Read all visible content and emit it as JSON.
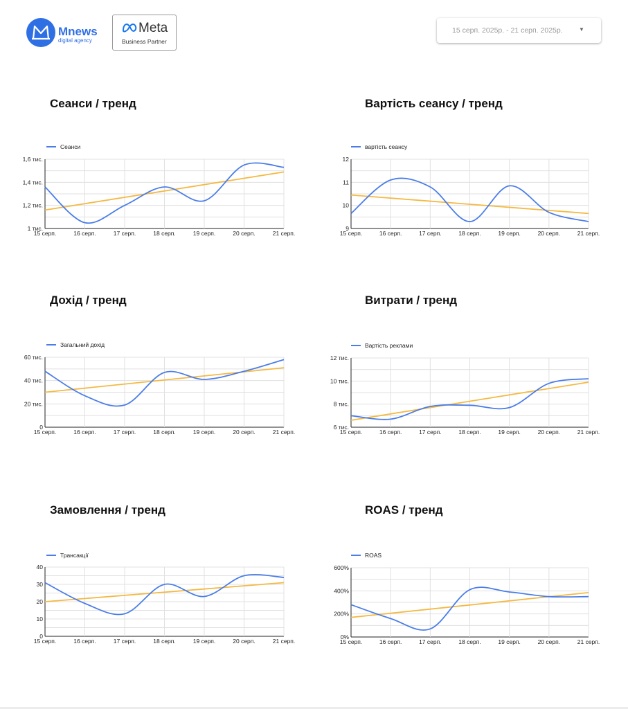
{
  "header": {
    "brand": "Mnews",
    "brand_sub": "digital agency",
    "meta_word": "Meta",
    "meta_partner": "Business Partner",
    "date_range": "15 серп. 2025р. - 21 серп. 2025р."
  },
  "colors": {
    "series": "#4a7de8",
    "trend": "#f4b942",
    "brand": "#2f6fe4"
  },
  "cards": [
    {
      "title": "Сеанси / тренд"
    },
    {
      "title": "Вартість сеансу / тренд"
    },
    {
      "title": "Дохід / тренд"
    },
    {
      "title": "Витрати / тренд"
    },
    {
      "title": "Замовлення / тренд"
    },
    {
      "title": "ROAS / тренд"
    }
  ],
  "chart_data": [
    {
      "type": "line",
      "x": [
        "15 серп.",
        "16 серп.",
        "17 серп.",
        "18 серп.",
        "19 серп.",
        "20 серп.",
        "21 серп."
      ],
      "yticks": [
        "1 тис.",
        "1,2 тис.",
        "1,4 тис.",
        "1,6 тис."
      ],
      "ylim": [
        1000,
        1600
      ],
      "legend": "top-left",
      "series": [
        {
          "name": "Сеанси",
          "values": [
            1360,
            1050,
            1200,
            1360,
            1240,
            1550,
            1530
          ]
        }
      ],
      "trend": [
        1160,
        1490
      ]
    },
    {
      "type": "line",
      "x": [
        "15 серп.",
        "16 серп.",
        "17 серп.",
        "18 серп.",
        "19 серп.",
        "20 серп.",
        "21 серп."
      ],
      "yticks": [
        "9",
        "10",
        "11",
        "12"
      ],
      "ylim": [
        9,
        12
      ],
      "legend": "top-left",
      "series": [
        {
          "name": "вартість сеансу",
          "values": [
            9.65,
            11.1,
            10.8,
            9.3,
            10.85,
            9.7,
            9.3
          ]
        }
      ],
      "trend": [
        10.45,
        9.65
      ]
    },
    {
      "type": "line",
      "x": [
        "15 серп.",
        "16 серп.",
        "17 серп.",
        "18 серп.",
        "19 серп.",
        "20 серп.",
        "21 серп."
      ],
      "yticks": [
        "0",
        "20 тис.",
        "40 тис.",
        "60 тис."
      ],
      "ylim": [
        0,
        60000
      ],
      "legend": "top-left",
      "series": [
        {
          "name": "Загальний дохід",
          "values": [
            48000,
            27000,
            19000,
            47000,
            41000,
            48000,
            58000
          ]
        }
      ],
      "trend": [
        30000,
        51000
      ]
    },
    {
      "type": "line",
      "x": [
        "15 серп.",
        "16 серп.",
        "17 серп.",
        "18 серп.",
        "19 серп.",
        "20 серп.",
        "21 серп."
      ],
      "yticks": [
        "6 тис.",
        "8 тис.",
        "10 тис.",
        "12 тис."
      ],
      "ylim": [
        6000,
        12000
      ],
      "legend": "top-left",
      "series": [
        {
          "name": "Вартість реклами",
          "values": [
            7000,
            6700,
            7800,
            7900,
            7700,
            9800,
            10200
          ]
        }
      ],
      "trend": [
        6600,
        9900
      ]
    },
    {
      "type": "line",
      "x": [
        "15 серп.",
        "16 серп.",
        "17 серп.",
        "18 серп.",
        "19 серп.",
        "20 серп.",
        "21 серп."
      ],
      "yticks": [
        "0",
        "10",
        "20",
        "30",
        "40"
      ],
      "ylim": [
        0,
        40
      ],
      "legend": "top-left",
      "series": [
        {
          "name": "Трансакції",
          "values": [
            31,
            19,
            13,
            30,
            23,
            35,
            34
          ]
        }
      ],
      "trend": [
        20,
        31
      ]
    },
    {
      "type": "line",
      "x": [
        "15 серп.",
        "16 серп.",
        "17 серп.",
        "18 серп.",
        "19 серп.",
        "20 серп.",
        "21 серп."
      ],
      "yticks": [
        "0%",
        "200%",
        "400%",
        "600%"
      ],
      "ylim": [
        0,
        600
      ],
      "legend": "top-left",
      "series": [
        {
          "name": "ROAS",
          "values": [
            280,
            160,
            70,
            410,
            390,
            350,
            350
          ]
        }
      ],
      "trend": [
        170,
        385
      ]
    }
  ]
}
